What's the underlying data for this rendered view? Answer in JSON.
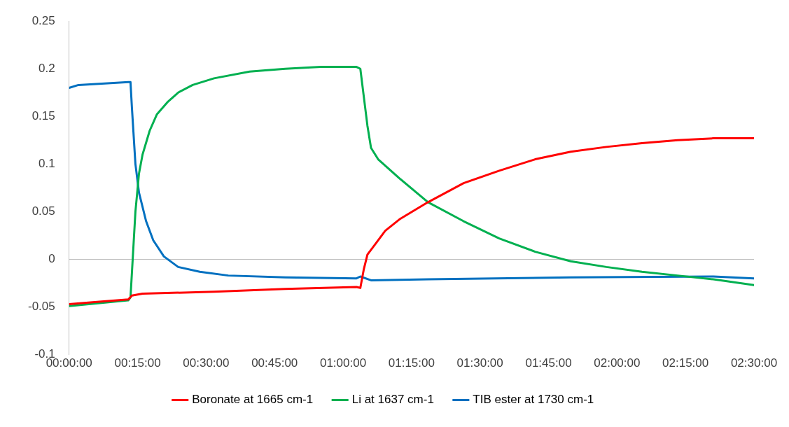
{
  "chart_data": {
    "type": "line",
    "legend": "bottom",
    "marker": "none",
    "line_style": "solid",
    "xlim": [
      0,
      2.5
    ],
    "xticks": [
      {
        "value": 0,
        "label": "00:00:00"
      },
      {
        "value": 0.25,
        "label": "00:15:00"
      },
      {
        "value": 0.5,
        "label": "00:30:00"
      },
      {
        "value": 0.75,
        "label": "00:45:00"
      },
      {
        "value": 1,
        "label": "01:00:00"
      },
      {
        "value": 1.25,
        "label": "01:15:00"
      },
      {
        "value": 1.5,
        "label": "01:30:00"
      },
      {
        "value": 1.75,
        "label": "01:45:00"
      },
      {
        "value": 2,
        "label": "02:00:00"
      },
      {
        "value": 2.25,
        "label": "02:15:00"
      },
      {
        "value": 2.5,
        "label": "02:30:00"
      }
    ],
    "ylim": [
      -0.1,
      0.25
    ],
    "yticks": [
      -0.1,
      -0.05,
      0,
      0.05,
      0.1,
      0.15,
      0.2,
      0.25
    ],
    "series": [
      {
        "name": "Boronate at 1665 cm-1",
        "color": "#ff0000",
        "x": [
          0,
          0.086,
          0.216,
          0.229,
          0.268,
          0.529,
          0.789,
          1.049,
          1.063,
          1.076,
          1.089,
          1.115,
          1.154,
          1.206,
          1.31,
          1.44,
          1.57,
          1.701,
          1.831,
          1.961,
          2.091,
          2.221,
          2.352,
          2.5
        ],
        "values": [
          -0.047,
          -0.045,
          -0.042,
          -0.038,
          -0.036,
          -0.034,
          -0.031,
          -0.029,
          -0.03,
          -0.01,
          0.005,
          0.015,
          0.03,
          0.042,
          0.06,
          0.08,
          0.093,
          0.105,
          0.113,
          0.118,
          0.122,
          0.125,
          0.127,
          0.127
        ]
      },
      {
        "name": "Li at 1637 cm-1",
        "color": "#00b050",
        "x": [
          0,
          0.216,
          0.224,
          0.232,
          0.242,
          0.255,
          0.268,
          0.294,
          0.32,
          0.359,
          0.398,
          0.451,
          0.529,
          0.659,
          0.789,
          0.919,
          1.049,
          1.063,
          1.076,
          1.089,
          1.102,
          1.128,
          1.206,
          1.31,
          1.44,
          1.57,
          1.701,
          1.831,
          1.961,
          2.091,
          2.221,
          2.352,
          2.5
        ],
        "values": [
          -0.049,
          -0.043,
          -0.04,
          0,
          0.05,
          0.09,
          0.11,
          0.135,
          0.152,
          0.165,
          0.175,
          0.183,
          0.19,
          0.197,
          0.2,
          0.202,
          0.202,
          0.2,
          0.17,
          0.14,
          0.117,
          0.105,
          0.085,
          0.06,
          0.04,
          0.022,
          0.008,
          -0.002,
          -0.008,
          -0.013,
          -0.017,
          -0.021,
          -0.027
        ]
      },
      {
        "name": "TIB ester at 1730 cm-1",
        "color": "#0070c0",
        "x": [
          0,
          0.034,
          0.216,
          0.224,
          0.229,
          0.242,
          0.255,
          0.281,
          0.307,
          0.346,
          0.398,
          0.477,
          0.581,
          0.789,
          1.049,
          1.063,
          1.102,
          1.31,
          1.831,
          2.352,
          2.5
        ],
        "values": [
          0.18,
          0.183,
          0.186,
          0.186,
          0.16,
          0.1,
          0.07,
          0.04,
          0.02,
          0.003,
          -0.008,
          -0.013,
          -0.017,
          -0.019,
          -0.02,
          -0.018,
          -0.022,
          -0.021,
          -0.019,
          -0.018,
          -0.02
        ]
      }
    ]
  }
}
